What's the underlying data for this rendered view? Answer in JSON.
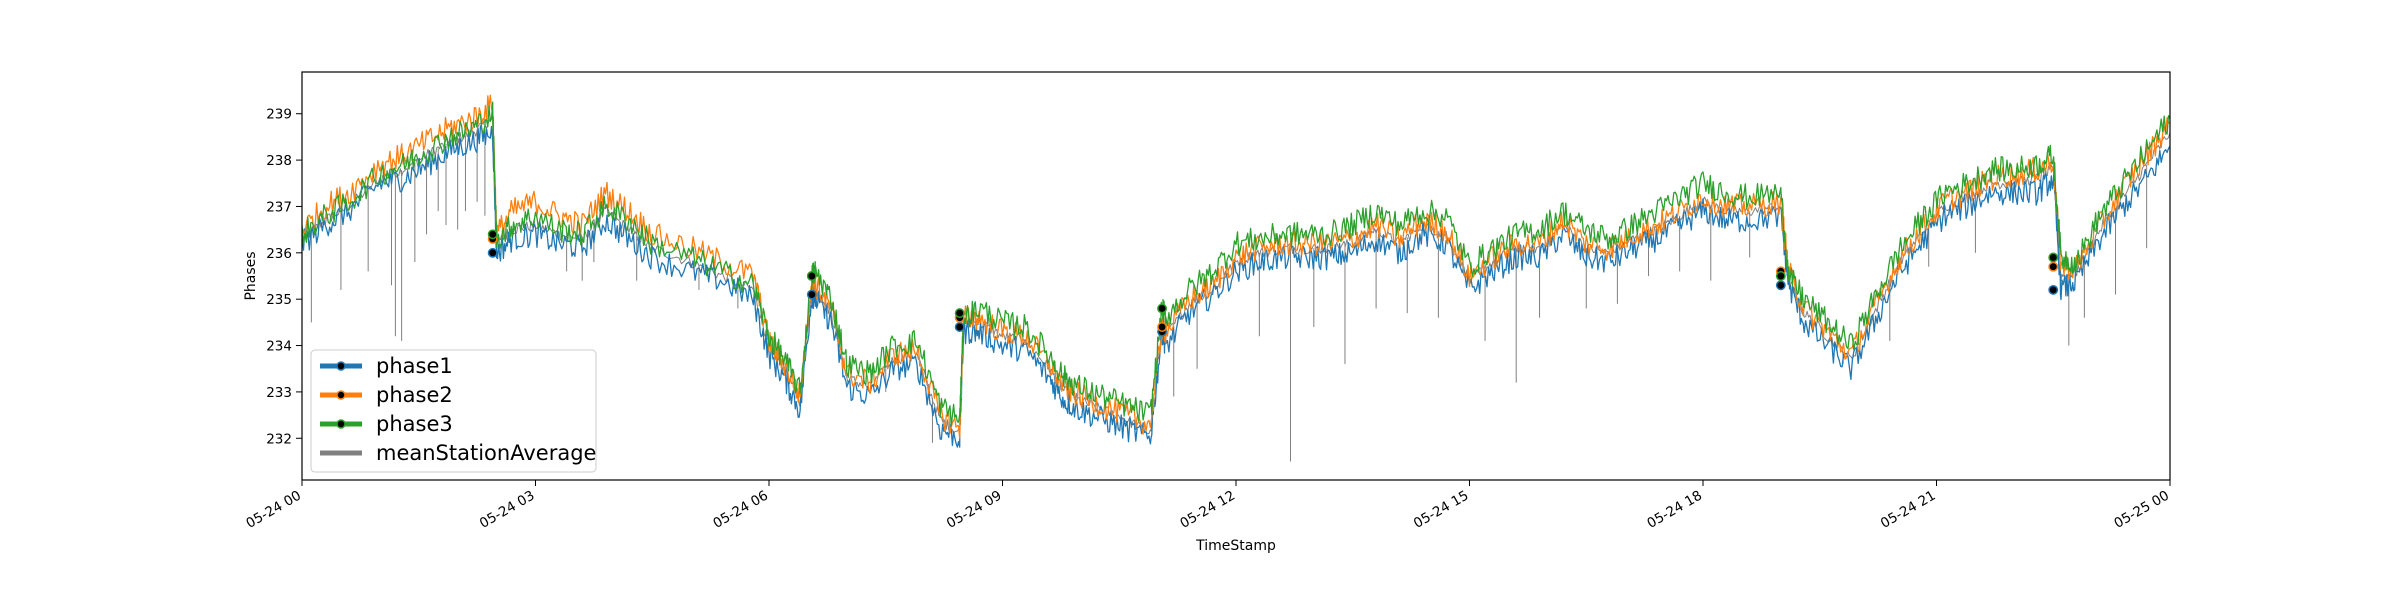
{
  "chart_data": {
    "type": "line",
    "title": "",
    "xlabel": "TimeStamp",
    "ylabel": "Phases",
    "x_unit": "hours since 05-24 00:00",
    "xlim": [
      0,
      24
    ],
    "ylim": [
      231.1,
      239.9
    ],
    "yticks": [
      232,
      233,
      234,
      235,
      236,
      237,
      238,
      239
    ],
    "xticks": [
      {
        "x": 0,
        "label": "05-24 00"
      },
      {
        "x": 3,
        "label": "05-24 03"
      },
      {
        "x": 6,
        "label": "05-24 06"
      },
      {
        "x": 9,
        "label": "05-24 09"
      },
      {
        "x": 12,
        "label": "05-24 12"
      },
      {
        "x": 15,
        "label": "05-24 15"
      },
      {
        "x": 18,
        "label": "05-24 18"
      },
      {
        "x": 21,
        "label": "05-24 21"
      },
      {
        "x": 24,
        "label": "05-25 00"
      }
    ],
    "legend_position": "lower-left",
    "grid": false,
    "series": [
      {
        "name": "phase1",
        "color": "#1f77b4",
        "marker": "circle",
        "x": [
          0,
          0.3,
          0.6,
          1.0,
          1.3,
          1.6,
          1.9,
          2.2,
          2.45,
          2.5,
          2.7,
          3.0,
          3.3,
          3.6,
          3.9,
          4.2,
          4.5,
          5.0,
          5.4,
          5.8,
          6.0,
          6.2,
          6.4,
          6.55,
          6.6,
          6.8,
          7.0,
          7.3,
          7.6,
          7.9,
          8.2,
          8.45,
          8.5,
          8.7,
          9.0,
          9.3,
          9.6,
          9.8,
          10.0,
          10.3,
          10.6,
          10.9,
          11.05,
          11.1,
          11.4,
          11.7,
          12.0,
          12.3,
          12.6,
          12.9,
          13.2,
          13.5,
          13.8,
          14.1,
          14.4,
          14.7,
          15.0,
          15.3,
          15.6,
          15.9,
          16.2,
          16.5,
          16.8,
          17.1,
          17.4,
          17.7,
          18.0,
          18.3,
          18.6,
          19.0,
          19.1,
          19.3,
          19.6,
          19.9,
          20.2,
          20.5,
          20.8,
          21.1,
          21.4,
          21.7,
          22.0,
          22.3,
          22.5,
          22.6,
          22.8,
          23.1,
          23.4,
          23.7,
          24.0
        ],
        "y": [
          236.2,
          236.6,
          236.9,
          237.5,
          237.6,
          237.9,
          238.2,
          238.4,
          238.6,
          236.0,
          236.3,
          236.4,
          236.2,
          236.1,
          236.7,
          236.3,
          235.9,
          235.6,
          235.4,
          235.0,
          233.8,
          233.3,
          232.6,
          235.1,
          235.0,
          234.5,
          233.1,
          232.9,
          233.5,
          233.6,
          232.2,
          232.0,
          234.3,
          234.3,
          234.0,
          233.9,
          233.3,
          232.8,
          232.6,
          232.4,
          232.2,
          232.0,
          234.3,
          234.0,
          234.7,
          235.1,
          235.6,
          235.8,
          235.9,
          235.9,
          235.9,
          236.0,
          236.3,
          236.0,
          236.4,
          236.2,
          235.2,
          235.6,
          235.9,
          235.9,
          236.4,
          235.9,
          235.8,
          236.1,
          236.3,
          236.6,
          236.9,
          236.7,
          236.7,
          236.8,
          235.3,
          234.5,
          234.0,
          233.5,
          234.5,
          235.5,
          236.2,
          236.8,
          237.0,
          237.3,
          237.3,
          237.3,
          237.6,
          235.2,
          235.4,
          236.3,
          237.0,
          237.6,
          238.3
        ]
      },
      {
        "name": "phase2",
        "color": "#ff7f0e",
        "marker": "circle",
        "x": [
          0,
          0.3,
          0.6,
          1.0,
          1.3,
          1.6,
          1.9,
          2.2,
          2.45,
          2.5,
          2.7,
          3.0,
          3.3,
          3.6,
          3.9,
          4.2,
          4.5,
          5.0,
          5.4,
          5.8,
          6.0,
          6.2,
          6.4,
          6.55,
          6.6,
          6.8,
          7.0,
          7.3,
          7.6,
          7.9,
          8.2,
          8.45,
          8.5,
          8.7,
          9.0,
          9.3,
          9.6,
          9.8,
          10.0,
          10.3,
          10.6,
          10.9,
          11.05,
          11.1,
          11.4,
          11.7,
          12.0,
          12.3,
          12.6,
          12.9,
          13.2,
          13.5,
          13.8,
          14.1,
          14.4,
          14.7,
          15.0,
          15.3,
          15.6,
          15.9,
          16.2,
          16.5,
          16.8,
          17.1,
          17.4,
          17.7,
          18.0,
          18.3,
          18.6,
          19.0,
          19.1,
          19.3,
          19.6,
          19.9,
          20.2,
          20.5,
          20.8,
          21.1,
          21.4,
          21.7,
          22.0,
          22.3,
          22.5,
          22.6,
          22.8,
          23.1,
          23.4,
          23.7,
          24.0
        ],
        "y": [
          236.5,
          237.0,
          237.3,
          237.9,
          238.1,
          238.4,
          238.7,
          238.9,
          239.2,
          236.4,
          236.9,
          237.1,
          236.8,
          236.6,
          237.3,
          236.9,
          236.4,
          236.1,
          235.8,
          235.5,
          234.1,
          233.6,
          232.9,
          235.5,
          235.3,
          234.8,
          233.4,
          233.2,
          233.8,
          233.9,
          232.5,
          232.2,
          234.6,
          234.6,
          234.3,
          234.2,
          233.6,
          233.1,
          232.9,
          232.7,
          232.5,
          232.3,
          234.4,
          234.3,
          235.0,
          235.3,
          235.9,
          236.1,
          236.2,
          236.2,
          236.2,
          236.3,
          236.6,
          236.3,
          236.7,
          236.5,
          235.5,
          235.9,
          236.2,
          236.2,
          236.7,
          236.2,
          236.1,
          236.4,
          236.6,
          236.9,
          237.2,
          237.0,
          237.0,
          237.1,
          235.6,
          234.8,
          234.3,
          233.8,
          234.8,
          235.8,
          236.5,
          237.1,
          237.3,
          237.6,
          237.7,
          237.8,
          238.0,
          235.7,
          235.7,
          236.6,
          237.4,
          238.1,
          238.8
        ]
      },
      {
        "name": "phase3",
        "color": "#2ca02c",
        "marker": "circle",
        "x": [
          0,
          0.3,
          0.6,
          1.0,
          1.3,
          1.6,
          1.9,
          2.2,
          2.45,
          2.5,
          2.7,
          3.0,
          3.3,
          3.6,
          3.9,
          4.2,
          4.5,
          5.0,
          5.4,
          5.8,
          6.0,
          6.2,
          6.4,
          6.55,
          6.6,
          6.8,
          7.0,
          7.3,
          7.6,
          7.9,
          8.2,
          8.45,
          8.5,
          8.7,
          9.0,
          9.3,
          9.6,
          9.8,
          10.0,
          10.3,
          10.6,
          10.9,
          11.05,
          11.1,
          11.4,
          11.7,
          12.0,
          12.3,
          12.6,
          12.9,
          13.2,
          13.5,
          13.8,
          14.1,
          14.4,
          14.7,
          15.0,
          15.3,
          15.6,
          15.9,
          16.2,
          16.5,
          16.8,
          17.1,
          17.4,
          17.7,
          18.0,
          18.3,
          18.6,
          19.0,
          19.1,
          19.3,
          19.6,
          19.9,
          20.2,
          20.5,
          20.8,
          21.1,
          21.4,
          21.7,
          22.0,
          22.3,
          22.5,
          22.6,
          22.8,
          23.1,
          23.4,
          23.7,
          24.0
        ],
        "y": [
          236.4,
          236.8,
          237.1,
          237.7,
          237.9,
          238.2,
          238.5,
          238.7,
          239.0,
          236.3,
          236.6,
          236.8,
          236.5,
          236.4,
          237.0,
          236.7,
          236.2,
          235.9,
          235.6,
          235.3,
          234.2,
          233.7,
          233.0,
          235.5,
          235.6,
          235.0,
          233.6,
          233.4,
          234.0,
          234.1,
          232.7,
          232.4,
          234.6,
          234.8,
          234.5,
          234.4,
          233.8,
          233.3,
          233.1,
          232.9,
          232.7,
          232.5,
          234.8,
          234.6,
          235.2,
          235.6,
          236.2,
          236.3,
          236.4,
          236.4,
          236.4,
          236.6,
          236.9,
          236.6,
          236.9,
          236.8,
          235.7,
          236.1,
          236.4,
          236.5,
          236.9,
          236.5,
          236.3,
          236.6,
          236.9,
          237.2,
          237.5,
          237.3,
          237.2,
          237.3,
          235.5,
          235.0,
          234.5,
          234.0,
          235.0,
          236.0,
          236.7,
          237.3,
          237.5,
          237.8,
          237.8,
          237.9,
          238.1,
          235.9,
          235.8,
          236.8,
          237.5,
          238.2,
          238.9
        ]
      },
      {
        "name": "meanStationAverage",
        "color": "#808080",
        "marker": "none",
        "x": [
          0,
          0.3,
          0.6,
          1.0,
          1.3,
          1.6,
          1.9,
          2.2,
          2.45,
          2.5,
          2.7,
          3.0,
          3.3,
          3.6,
          3.9,
          4.2,
          4.5,
          5.0,
          5.4,
          5.8,
          6.0,
          6.2,
          6.4,
          6.55,
          6.6,
          6.8,
          7.0,
          7.3,
          7.6,
          7.9,
          8.2,
          8.45,
          8.5,
          8.7,
          9.0,
          9.3,
          9.6,
          9.8,
          10.0,
          10.3,
          10.6,
          10.9,
          11.05,
          11.1,
          11.4,
          11.7,
          12.0,
          12.3,
          12.6,
          12.9,
          13.2,
          13.5,
          13.8,
          14.1,
          14.4,
          14.7,
          15.0,
          15.3,
          15.6,
          15.9,
          16.2,
          16.5,
          16.8,
          17.1,
          17.4,
          17.7,
          18.0,
          18.3,
          18.6,
          19.0,
          19.1,
          19.3,
          19.6,
          19.9,
          20.2,
          20.5,
          20.8,
          21.1,
          21.4,
          21.7,
          22.0,
          22.3,
          22.5,
          22.6,
          22.8,
          23.1,
          23.4,
          23.7,
          24.0
        ],
        "y": [
          236.3,
          236.7,
          237.0,
          237.6,
          237.8,
          238.1,
          238.4,
          238.6,
          238.9,
          236.2,
          236.5,
          236.6,
          236.4,
          236.3,
          236.9,
          236.5,
          236.1,
          235.8,
          235.5,
          235.2,
          234.0,
          233.5,
          232.8,
          235.3,
          235.2,
          234.7,
          233.3,
          233.1,
          233.7,
          233.8,
          232.4,
          232.1,
          234.5,
          234.5,
          234.2,
          234.1,
          233.5,
          233.0,
          232.8,
          232.6,
          232.4,
          232.1,
          234.5,
          234.2,
          234.9,
          235.2,
          235.8,
          236.0,
          236.1,
          236.1,
          236.1,
          236.2,
          236.5,
          236.2,
          236.6,
          236.4,
          235.4,
          235.8,
          236.1,
          236.1,
          236.6,
          236.1,
          236.0,
          236.3,
          236.5,
          236.8,
          237.1,
          236.9,
          236.9,
          237.0,
          235.4,
          234.7,
          234.2,
          233.7,
          234.7,
          235.7,
          236.4,
          237.0,
          237.2,
          237.5,
          237.5,
          237.6,
          237.8,
          235.5,
          235.6,
          236.5,
          237.2,
          237.9,
          238.6
        ]
      }
    ],
    "marker_points": [
      {
        "series": "phase1",
        "x": [
          2.45,
          6.55,
          8.45,
          11.05,
          19.0,
          22.5
        ],
        "y": [
          236.0,
          235.1,
          234.4,
          234.3,
          235.3,
          235.2
        ]
      },
      {
        "series": "phase2",
        "x": [
          2.45,
          6.55,
          8.45,
          11.05,
          19.0,
          22.5
        ],
        "y": [
          236.3,
          235.5,
          234.6,
          234.4,
          235.6,
          235.7
        ]
      },
      {
        "series": "phase3",
        "x": [
          2.45,
          6.55,
          8.45,
          11.05,
          19.0,
          22.5
        ],
        "y": [
          236.4,
          235.5,
          234.7,
          234.8,
          235.5,
          235.9
        ]
      }
    ],
    "mean_dips": [
      {
        "x": 0.12,
        "y": 234.5
      },
      {
        "x": 0.5,
        "y": 235.2
      },
      {
        "x": 0.85,
        "y": 235.6
      },
      {
        "x": 1.15,
        "y": 235.3
      },
      {
        "x": 1.2,
        "y": 234.2
      },
      {
        "x": 1.28,
        "y": 234.1
      },
      {
        "x": 1.45,
        "y": 235.8
      },
      {
        "x": 1.6,
        "y": 236.4
      },
      {
        "x": 1.75,
        "y": 236.9
      },
      {
        "x": 1.85,
        "y": 236.6
      },
      {
        "x": 2.0,
        "y": 236.5
      },
      {
        "x": 2.1,
        "y": 236.9
      },
      {
        "x": 2.25,
        "y": 237.1
      },
      {
        "x": 2.35,
        "y": 236.8
      },
      {
        "x": 3.4,
        "y": 235.6
      },
      {
        "x": 3.6,
        "y": 235.4
      },
      {
        "x": 3.75,
        "y": 235.8
      },
      {
        "x": 4.3,
        "y": 235.4
      },
      {
        "x": 5.1,
        "y": 235.2
      },
      {
        "x": 5.6,
        "y": 234.8
      },
      {
        "x": 7.5,
        "y": 233.0
      },
      {
        "x": 8.1,
        "y": 231.9
      },
      {
        "x": 11.2,
        "y": 232.9
      },
      {
        "x": 11.5,
        "y": 233.5
      },
      {
        "x": 12.3,
        "y": 234.2
      },
      {
        "x": 12.7,
        "y": 231.5
      },
      {
        "x": 13.0,
        "y": 234.4
      },
      {
        "x": 13.4,
        "y": 233.6
      },
      {
        "x": 13.8,
        "y": 234.8
      },
      {
        "x": 14.2,
        "y": 234.7
      },
      {
        "x": 14.6,
        "y": 234.6
      },
      {
        "x": 15.2,
        "y": 234.1
      },
      {
        "x": 15.6,
        "y": 233.2
      },
      {
        "x": 15.9,
        "y": 234.6
      },
      {
        "x": 16.5,
        "y": 234.8
      },
      {
        "x": 16.9,
        "y": 234.9
      },
      {
        "x": 17.3,
        "y": 235.5
      },
      {
        "x": 17.7,
        "y": 235.6
      },
      {
        "x": 18.1,
        "y": 235.4
      },
      {
        "x": 18.6,
        "y": 235.9
      },
      {
        "x": 19.8,
        "y": 233.6
      },
      {
        "x": 20.4,
        "y": 234.1
      },
      {
        "x": 20.9,
        "y": 235.7
      },
      {
        "x": 21.5,
        "y": 236.0
      },
      {
        "x": 22.7,
        "y": 234.0
      },
      {
        "x": 22.9,
        "y": 234.6
      },
      {
        "x": 23.3,
        "y": 235.1
      },
      {
        "x": 23.7,
        "y": 236.1
      }
    ]
  }
}
